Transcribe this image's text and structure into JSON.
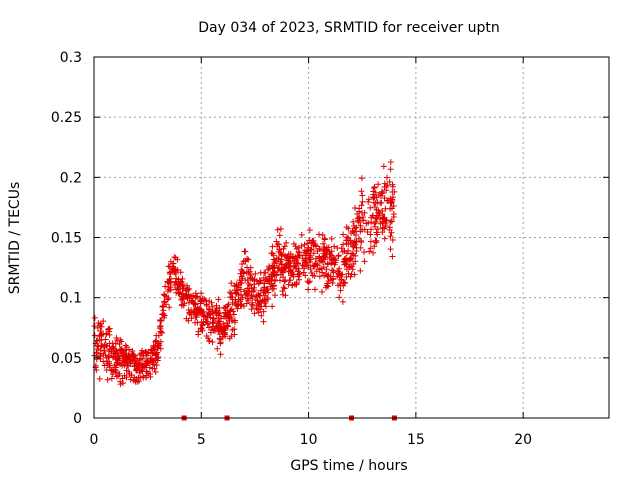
{
  "chart_data": {
    "type": "scatter",
    "title": "Day 034 of 2023, SRMTID for receiver uptn",
    "xlabel": "GPS time / hours",
    "ylabel": "SRMTID / TECUs",
    "xlim": [
      0,
      24
    ],
    "ylim": [
      0,
      0.3
    ],
    "xticks": [
      0,
      5,
      10,
      15,
      20
    ],
    "xtick_labels": [
      "0",
      "5",
      "10",
      "15",
      "20"
    ],
    "yticks": [
      0,
      0.05,
      0.1,
      0.15,
      0.2,
      0.25,
      0.3
    ],
    "ytick_labels": [
      "0",
      "0.05",
      "0.1",
      "0.15",
      "0.2",
      "0.25",
      "0.3"
    ],
    "grid": true,
    "marker_style": "plus",
    "series_color": "#e00000",
    "markers_at_zero_hours": [
      4.2,
      6.2,
      12.0,
      14.0
    ],
    "trend": [
      {
        "hour": 0.0,
        "mean": 0.055,
        "spread": 0.028
      },
      {
        "hour": 0.5,
        "mean": 0.06,
        "spread": 0.025
      },
      {
        "hour": 1.0,
        "mean": 0.05,
        "spread": 0.025
      },
      {
        "hour": 1.5,
        "mean": 0.045,
        "spread": 0.02
      },
      {
        "hour": 2.0,
        "mean": 0.043,
        "spread": 0.018
      },
      {
        "hour": 2.5,
        "mean": 0.043,
        "spread": 0.018
      },
      {
        "hour": 3.0,
        "mean": 0.055,
        "spread": 0.02
      },
      {
        "hour": 3.3,
        "mean": 0.1,
        "spread": 0.025
      },
      {
        "hour": 3.7,
        "mean": 0.125,
        "spread": 0.02
      },
      {
        "hour": 4.2,
        "mean": 0.1,
        "spread": 0.02
      },
      {
        "hour": 5.0,
        "mean": 0.085,
        "spread": 0.022
      },
      {
        "hour": 5.5,
        "mean": 0.08,
        "spread": 0.025
      },
      {
        "hour": 6.0,
        "mean": 0.075,
        "spread": 0.025
      },
      {
        "hour": 6.5,
        "mean": 0.09,
        "spread": 0.028
      },
      {
        "hour": 7.0,
        "mean": 0.12,
        "spread": 0.035
      },
      {
        "hour": 7.5,
        "mean": 0.1,
        "spread": 0.025
      },
      {
        "hour": 8.0,
        "mean": 0.105,
        "spread": 0.025
      },
      {
        "hour": 8.5,
        "mean": 0.13,
        "spread": 0.03
      },
      {
        "hour": 9.0,
        "mean": 0.12,
        "spread": 0.03
      },
      {
        "hour": 9.5,
        "mean": 0.13,
        "spread": 0.03
      },
      {
        "hour": 10.0,
        "mean": 0.13,
        "spread": 0.03
      },
      {
        "hour": 10.5,
        "mean": 0.135,
        "spread": 0.03
      },
      {
        "hour": 11.0,
        "mean": 0.13,
        "spread": 0.03
      },
      {
        "hour": 11.5,
        "mean": 0.125,
        "spread": 0.03
      },
      {
        "hour": 12.0,
        "mean": 0.14,
        "spread": 0.035
      },
      {
        "hour": 12.5,
        "mean": 0.16,
        "spread": 0.04
      },
      {
        "hour": 13.0,
        "mean": 0.165,
        "spread": 0.04
      },
      {
        "hour": 13.5,
        "mean": 0.17,
        "spread": 0.04
      },
      {
        "hour": 14.0,
        "mean": 0.18,
        "spread": 0.045
      }
    ],
    "n_points": 1300,
    "x_range_hours": [
      0,
      14.0
    ]
  }
}
